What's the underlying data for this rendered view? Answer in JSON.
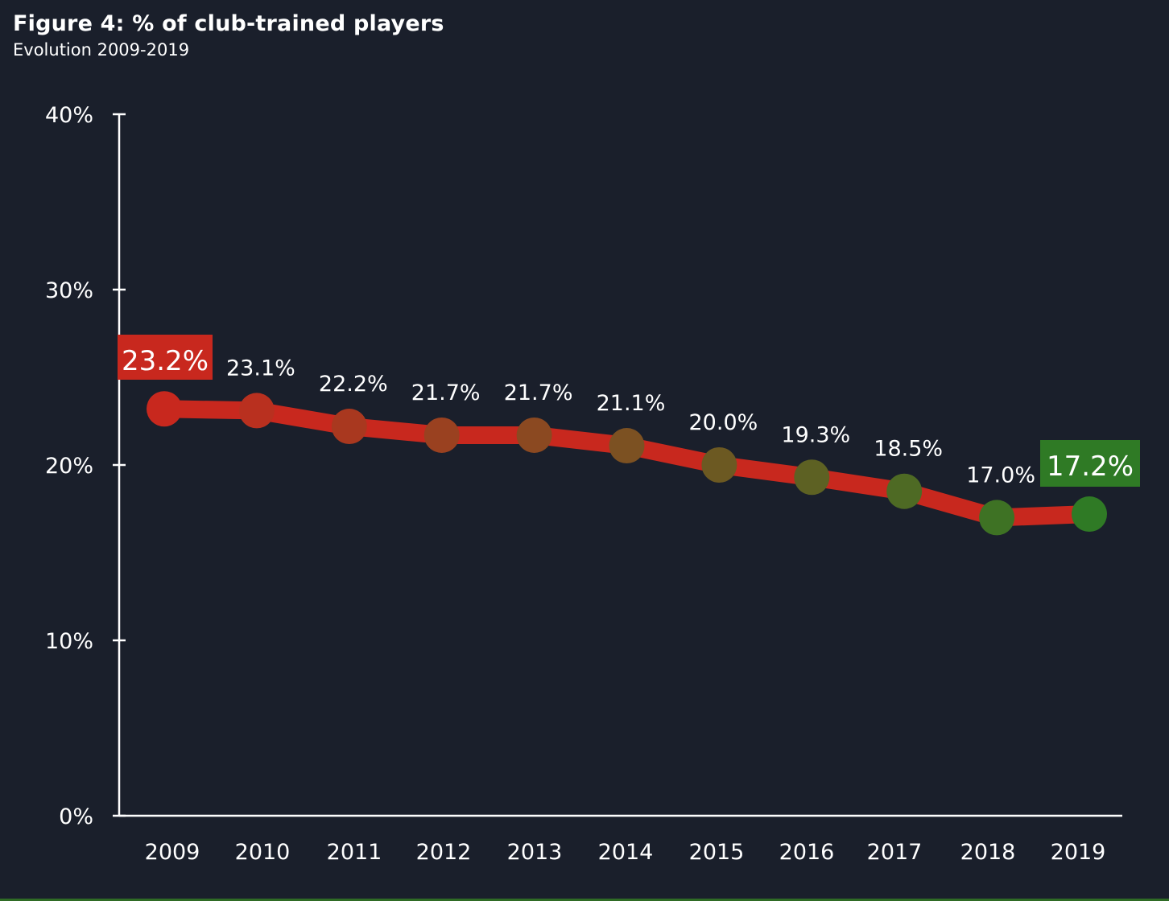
{
  "title": "Figure 4: % of club-trained players",
  "subtitle": "Evolution 2009-2019",
  "chart_data": {
    "type": "line",
    "title": "Figure 4: % of club-trained players",
    "subtitle": "Evolution 2009-2019",
    "xlabel": "",
    "ylabel": "",
    "categories": [
      "2009",
      "2010",
      "2011",
      "2012",
      "2013",
      "2014",
      "2015",
      "2016",
      "2017",
      "2018",
      "2019"
    ],
    "series": [
      {
        "values": [
          23.2,
          23.1,
          22.2,
          21.7,
          21.7,
          21.1,
          20.0,
          19.3,
          18.5,
          17.0,
          17.2
        ],
        "labels": [
          "23.2%",
          "23.1%",
          "22.2%",
          "21.7%",
          "21.7%",
          "21.1%",
          "20.0%",
          "19.3%",
          "18.5%",
          "17.0%",
          "17.2%"
        ]
      }
    ],
    "ylim": [
      0,
      40
    ],
    "yticks": [
      0,
      10,
      20,
      30,
      40
    ],
    "ytick_labels": [
      "0%",
      "10%",
      "20%",
      "30%",
      "40%"
    ],
    "grid": false,
    "colors": {
      "line": "#c8281e",
      "start_marker": "#c8281e",
      "end_marker": "#2f7a25",
      "highlight_start_box": "#c8281e",
      "highlight_end_box": "#2f7a25",
      "axis": "#ffffff",
      "background": "#1a1f2b"
    }
  }
}
